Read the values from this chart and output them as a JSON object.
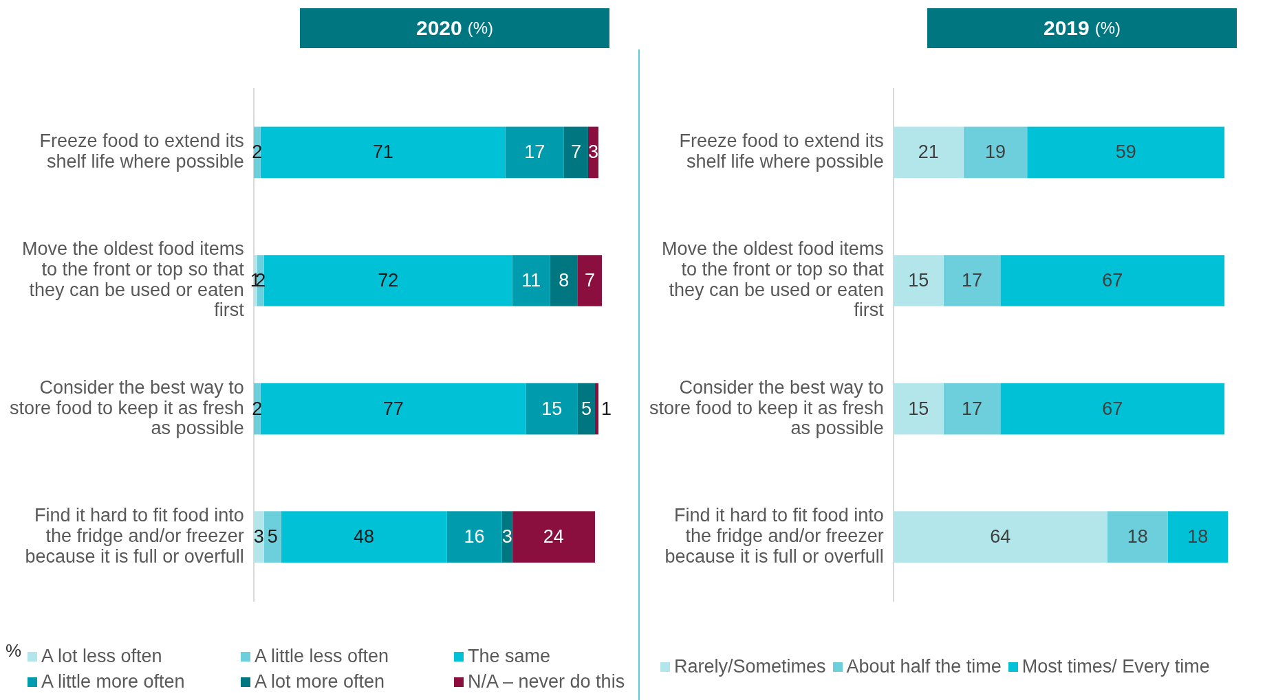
{
  "chart_data": [
    {
      "type": "bar",
      "orientation": "horizontal",
      "stacked": true,
      "title": "2020 (%)",
      "categories": [
        "Freeze food to extend its shelf life where possible",
        "Move the oldest food items to the front or top so that they can be used or eaten first",
        "Consider the best way to store food to keep it as fresh as possible",
        "Find it hard to fit food into the fridge and/or freezer because it is full or overfull"
      ],
      "series": [
        {
          "name": "A lot less often",
          "color": "#b3e6ea",
          "values": [
            0,
            1,
            0,
            3
          ],
          "value_labels": [
            null,
            "1",
            null,
            "3"
          ]
        },
        {
          "name": "A little less often",
          "color": "#6dcfdc",
          "values": [
            2,
            2,
            2,
            5
          ],
          "value_labels": [
            "2",
            "2",
            "2",
            "5"
          ]
        },
        {
          "name": "The same",
          "color": "#00c1d5",
          "values": [
            71,
            72,
            77,
            48
          ],
          "value_labels": [
            "71",
            "72",
            "77",
            "48"
          ]
        },
        {
          "name": "A little more often",
          "color": "#009cae",
          "values": [
            17,
            11,
            15,
            16
          ],
          "value_labels": [
            "17",
            "11",
            "15",
            "16"
          ]
        },
        {
          "name": "A lot more often",
          "color": "#007681",
          "values": [
            7,
            8,
            5,
            3
          ],
          "value_labels": [
            "7",
            "8",
            "5",
            "3"
          ]
        },
        {
          "name": "N/A – never do this",
          "color": "#8a0f3e",
          "values": [
            3,
            7,
            1,
            24
          ],
          "value_labels": [
            "3",
            "7",
            "1",
            "24"
          ]
        }
      ],
      "xlim": [
        0,
        101
      ],
      "tick_labels": "y",
      "grid": false,
      "legend": "bottom",
      "annotations": [
        "%"
      ]
    },
    {
      "type": "bar",
      "orientation": "horizontal",
      "stacked": true,
      "title": "2019 (%)",
      "categories": [
        "Freeze food to extend its shelf life where possible",
        "Move the oldest food items to the front or top so that they can be used or eaten first",
        "Consider the best way to store food to keep it as fresh as possible",
        "Find it hard to fit food into the fridge and/or freezer because it is full or overfull"
      ],
      "series": [
        {
          "name": "Rarely/Sometimes",
          "color": "#b3e6ea",
          "values": [
            21,
            15,
            15,
            64
          ],
          "value_labels": [
            "21",
            "15",
            "15",
            "64"
          ]
        },
        {
          "name": "About half the time",
          "color": "#6dcfdc",
          "values": [
            19,
            17,
            17,
            18
          ],
          "value_labels": [
            "19",
            "17",
            "17",
            "18"
          ]
        },
        {
          "name": "Most times/ Every time",
          "color": "#00c1d5",
          "values": [
            59,
            67,
            67,
            18
          ],
          "value_labels": [
            "59",
            "67",
            "67",
            "18"
          ]
        }
      ],
      "xlim": [
        0,
        100
      ],
      "tick_labels": "y",
      "grid": false,
      "legend": "bottom"
    }
  ]
}
